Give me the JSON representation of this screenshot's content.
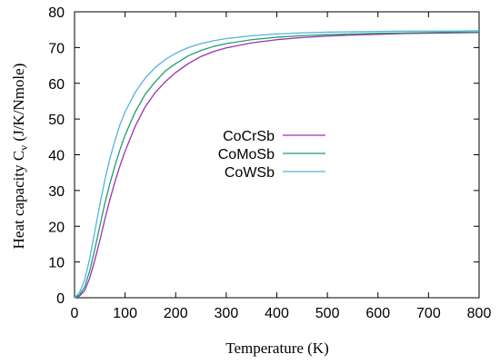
{
  "chart_data": {
    "type": "line",
    "title": "",
    "xlabel": "Temperature (K)",
    "ylabel": "Heat capacity C",
    "ylabel_subscript": "v",
    "ylabel_units": " (J/K/Nmole)",
    "xlim": [
      0,
      800
    ],
    "ylim": [
      0,
      80
    ],
    "xticks": [
      0,
      100,
      200,
      300,
      400,
      500,
      600,
      700,
      800
    ],
    "yticks": [
      0,
      10,
      20,
      30,
      40,
      50,
      60,
      70,
      80
    ],
    "grid": false,
    "legend_position": "center",
    "x": [
      0,
      10,
      20,
      30,
      40,
      50,
      60,
      70,
      80,
      90,
      100,
      120,
      140,
      160,
      180,
      200,
      225,
      250,
      275,
      300,
      350,
      400,
      450,
      500,
      550,
      600,
      650,
      700,
      750,
      800
    ],
    "series": [
      {
        "name": "CoCrSb",
        "color": "#9b30b8",
        "values": [
          0,
          0.5,
          2,
          5.5,
          10.5,
          16,
          22,
          27.5,
          32.5,
          37,
          41,
          48,
          53.5,
          57.5,
          60.5,
          63,
          65.5,
          67.5,
          68.9,
          69.9,
          71.3,
          72.2,
          72.8,
          73.2,
          73.5,
          73.7,
          73.9,
          74.0,
          74.1,
          74.2
        ]
      },
      {
        "name": "CoMoSb",
        "color": "#1e9e6b",
        "values": [
          0,
          0.8,
          3,
          7.5,
          13.5,
          20,
          26.5,
          32,
          37,
          41.5,
          45.5,
          52,
          57,
          60.5,
          63.5,
          65.5,
          67.7,
          69.2,
          70.3,
          71.1,
          72.2,
          72.9,
          73.3,
          73.6,
          73.8,
          74.0,
          74.1,
          74.2,
          74.3,
          74.3
        ]
      },
      {
        "name": "CoWSb",
        "color": "#55b4d8",
        "values": [
          0,
          1.5,
          5,
          11,
          18.5,
          26,
          33,
          39,
          44,
          48.5,
          52,
          57.5,
          61.5,
          64.5,
          66.7,
          68.4,
          70,
          71.1,
          71.9,
          72.5,
          73.3,
          73.8,
          74.1,
          74.3,
          74.4,
          74.5,
          74.6,
          74.6,
          74.6,
          74.7
        ]
      }
    ]
  }
}
